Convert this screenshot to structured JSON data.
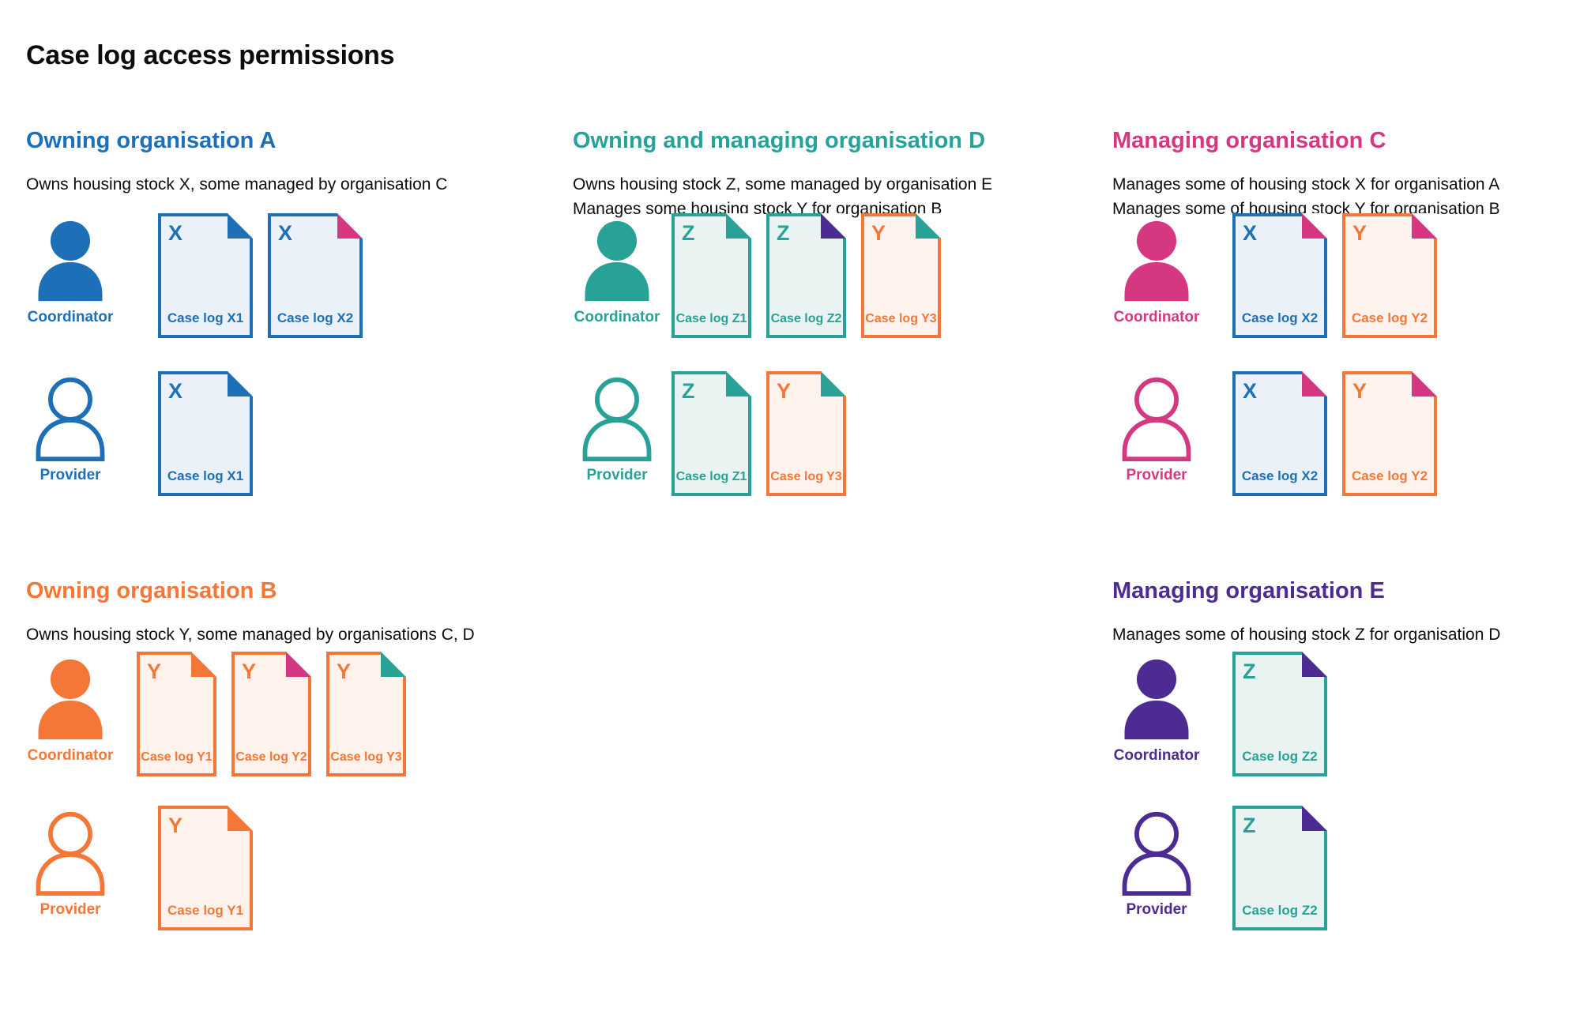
{
  "title": "Case log access permissions",
  "colors": {
    "blue": "#1d70b8",
    "teal": "#28a197",
    "pink": "#d53880",
    "orange": "#f47738",
    "purple": "#4c2c92",
    "text": "#0b0c0c",
    "blue_fill": "#eaf1f8",
    "teal_fill": "#e9f4f2",
    "orange_fill": "#fdf2ec"
  },
  "sections": [
    {
      "id": "owning-organisation-a",
      "heading": "Owning organisation A",
      "color": "blue",
      "description": [
        "Owns housing stock X, some managed by organisation C"
      ],
      "grid": {
        "column": 1,
        "row": 1
      },
      "doc_size": "wide",
      "rows": [
        {
          "role": "Coordinator",
          "person_style": "filled",
          "docs": [
            {
              "letter": "X",
              "label": "Case log X1",
              "color": "blue",
              "fold": "blue"
            },
            {
              "letter": "X",
              "label": "Case log X2",
              "color": "blue",
              "fold": "pink"
            }
          ]
        },
        {
          "role": "Provider",
          "person_style": "outline",
          "docs": [
            {
              "letter": "X",
              "label": "Case log X1",
              "color": "blue",
              "fold": "blue"
            }
          ]
        }
      ]
    },
    {
      "id": "owning-and-managing-organisation-d",
      "heading": "Owning and managing organisation D",
      "color": "teal",
      "description": [
        "Owns housing stock Z, some managed by organisation E",
        "Manages some housing stock Y for organisation B"
      ],
      "grid": {
        "column": 2,
        "row": 1
      },
      "doc_size": "narrow",
      "rows": [
        {
          "role": "Coordinator",
          "person_style": "filled",
          "docs": [
            {
              "letter": "Z",
              "label": "Case log Z1",
              "color": "teal",
              "fold": "teal"
            },
            {
              "letter": "Z",
              "label": "Case log Z2",
              "color": "teal",
              "fold": "purple"
            },
            {
              "letter": "Y",
              "label": "Case log Y3",
              "color": "orange",
              "fold": "teal"
            }
          ]
        },
        {
          "role": "Provider",
          "person_style": "outline",
          "docs": [
            {
              "letter": "Z",
              "label": "Case log Z1",
              "color": "teal",
              "fold": "teal"
            },
            {
              "letter": "Y",
              "label": "Case log Y3",
              "color": "orange",
              "fold": "teal"
            }
          ]
        }
      ]
    },
    {
      "id": "managing-organisation-c",
      "heading": "Managing organisation C",
      "color": "pink",
      "description": [
        "Manages some of housing stock X for organisation A",
        "Manages some of housing stock Y for organisation B"
      ],
      "grid": {
        "column": 3,
        "row": 1
      },
      "doc_size": "wide",
      "rows": [
        {
          "role": "Coordinator",
          "person_style": "filled",
          "docs": [
            {
              "letter": "X",
              "label": "Case log X2",
              "color": "blue",
              "fold": "pink"
            },
            {
              "letter": "Y",
              "label": "Case log Y2",
              "color": "orange",
              "fold": "pink"
            }
          ]
        },
        {
          "role": "Provider",
          "person_style": "outline",
          "docs": [
            {
              "letter": "X",
              "label": "Case log X2",
              "color": "blue",
              "fold": "pink"
            },
            {
              "letter": "Y",
              "label": "Case log Y2",
              "color": "orange",
              "fold": "pink"
            }
          ]
        }
      ]
    },
    {
      "id": "owning-organisation-b",
      "heading": "Owning organisation B",
      "color": "orange",
      "description": [
        "Owns housing stock Y, some managed by organisations C, D"
      ],
      "grid": {
        "column": 1,
        "row": 2
      },
      "doc_size": "wide",
      "rows": [
        {
          "role": "Coordinator",
          "person_style": "filled",
          "docs": [
            {
              "letter": "Y",
              "label": "Case log Y1",
              "color": "orange",
              "fold": "orange"
            },
            {
              "letter": "Y",
              "label": "Case log Y2",
              "color": "orange",
              "fold": "pink"
            },
            {
              "letter": "Y",
              "label": "Case log Y3",
              "color": "orange",
              "fold": "teal"
            }
          ]
        },
        {
          "role": "Provider",
          "person_style": "outline",
          "docs": [
            {
              "letter": "Y",
              "label": "Case log Y1",
              "color": "orange",
              "fold": "orange"
            }
          ]
        }
      ]
    },
    {
      "id": "managing-organisation-e",
      "heading": "Managing organisation E",
      "color": "purple",
      "description": [
        "Manages some of housing stock Z for organisation D"
      ],
      "grid": {
        "column": 3,
        "row": 2
      },
      "doc_size": "wide",
      "rows": [
        {
          "role": "Coordinator",
          "person_style": "filled",
          "docs": [
            {
              "letter": "Z",
              "label": "Case log Z2",
              "color": "teal",
              "fold": "purple"
            }
          ]
        },
        {
          "role": "Provider",
          "person_style": "outline",
          "docs": [
            {
              "letter": "Z",
              "label": "Case log Z2",
              "color": "teal",
              "fold": "purple"
            }
          ]
        }
      ]
    }
  ]
}
